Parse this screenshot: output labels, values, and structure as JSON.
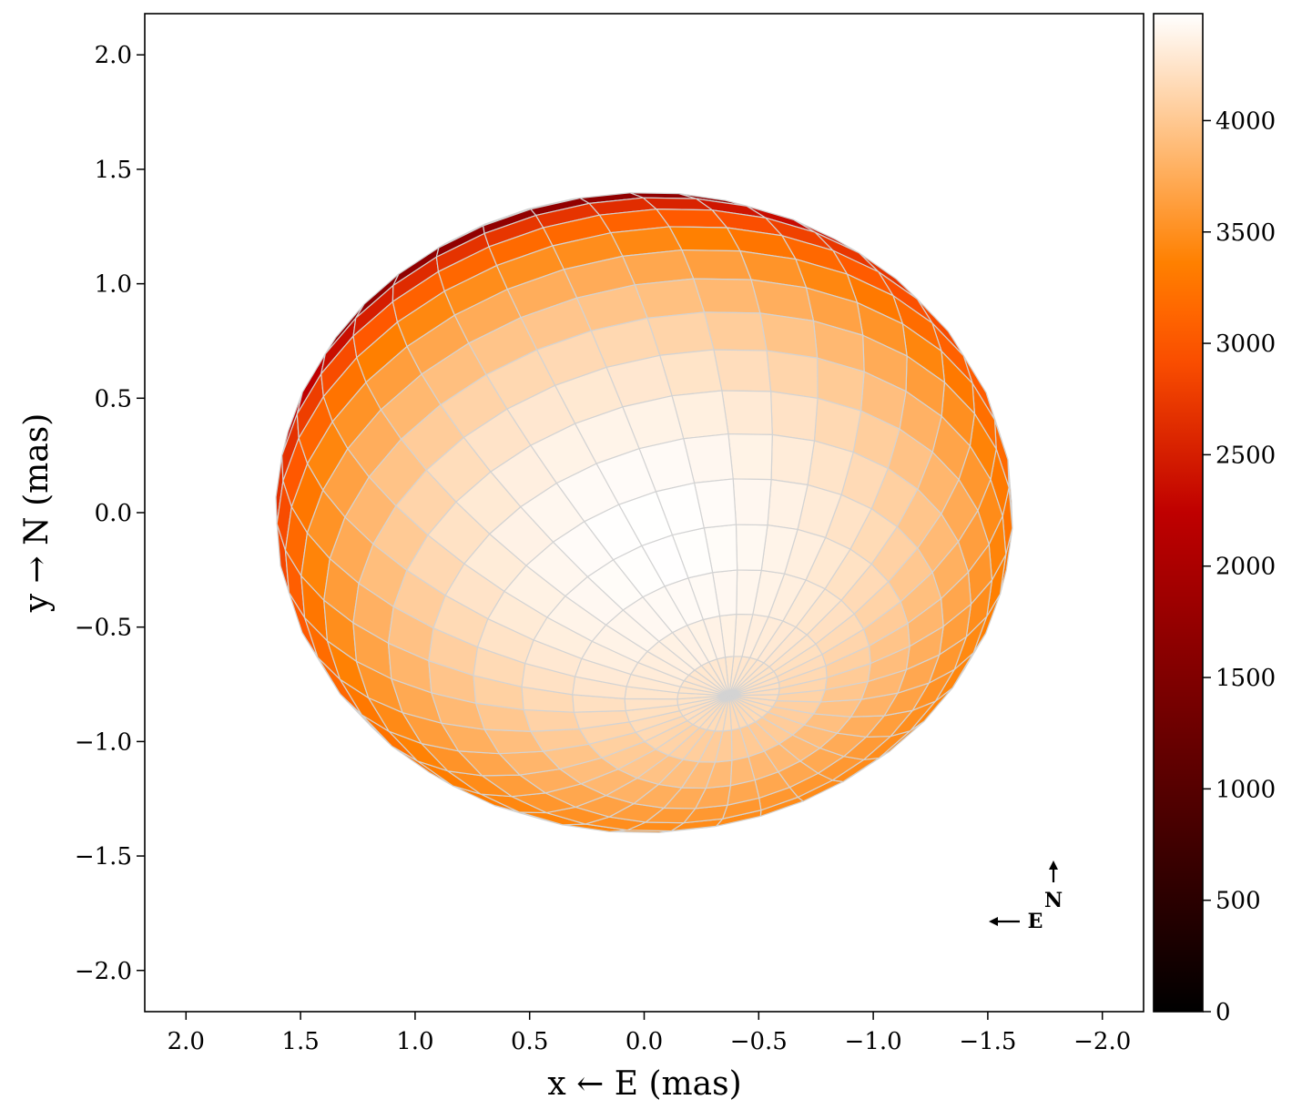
{
  "chart_data": {
    "type": "heatmap",
    "description_kind": "stellar surface intensity map (projected ellipsoid mesh)",
    "xlabel": "x ← E (mas)",
    "ylabel": "y → N (mas)",
    "xlim": [
      2.18,
      -2.18
    ],
    "ylim": [
      -2.18,
      2.18
    ],
    "x_ticks": [
      2.0,
      1.5,
      1.0,
      0.5,
      0.0,
      -0.5,
      -1.0,
      -1.5,
      -2.0
    ],
    "x_tick_labels": [
      "2.0",
      "1.5",
      "1.0",
      "0.5",
      "0.0",
      "−0.5",
      "−1.0",
      "−1.5",
      "−2.0"
    ],
    "y_ticks": [
      2.0,
      1.5,
      1.0,
      0.5,
      0.0,
      -0.5,
      -1.0,
      -1.5,
      -2.0
    ],
    "y_tick_labels": [
      "2.0",
      "1.5",
      "1.0",
      "0.5",
      "0.0",
      "−0.5",
      "−1.0",
      "−1.5",
      "−2.0"
    ],
    "colorbar": {
      "range": [
        0,
        4480
      ],
      "ticks": [
        0,
        500,
        1000,
        1500,
        2000,
        2500,
        3000,
        3500,
        4000
      ],
      "tick_labels": [
        "0",
        "500",
        "1000",
        "1500",
        "2000",
        "2500",
        "3000",
        "3500",
        "4000"
      ],
      "colormap": "gist_heat"
    },
    "star": {
      "center_x": 0.0,
      "center_y": 0.0,
      "semi_axis_x": 1.61,
      "semi_axis_y": 1.4,
      "peak_x": -0.05,
      "peak_y": -0.1,
      "max_value": 4480,
      "limb_value": 1700,
      "limb_darkening_exponent": 0.65
    },
    "compass": {
      "north_label": "N",
      "east_label": "E"
    },
    "grid": false,
    "mesh_line_color": "#d3d3d3"
  }
}
